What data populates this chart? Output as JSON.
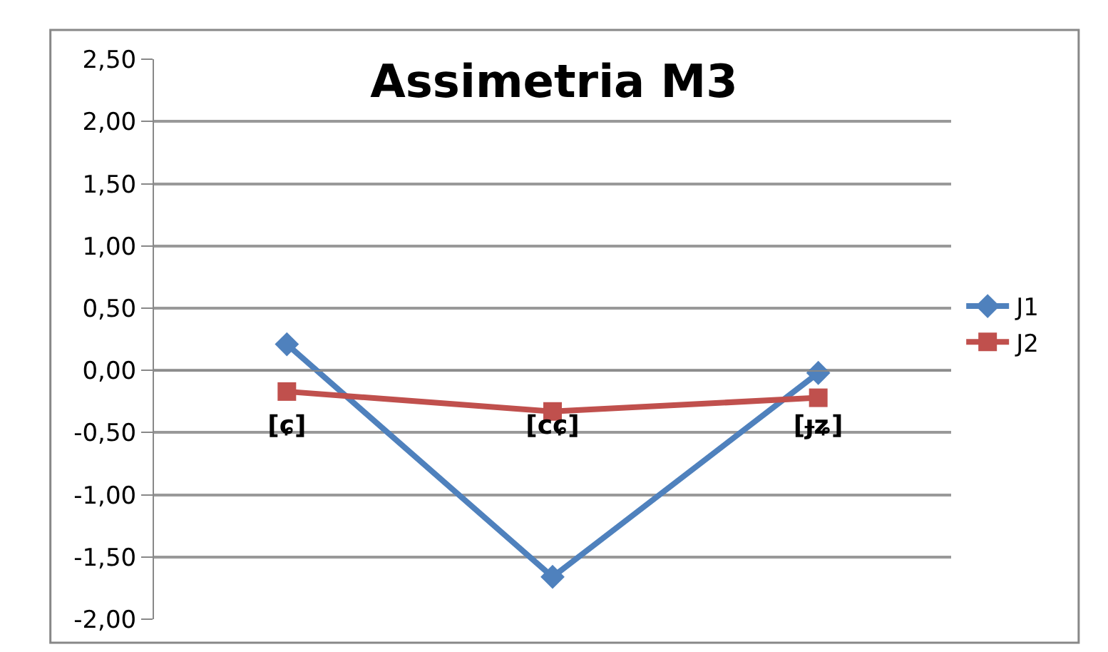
{
  "chart_data": {
    "type": "line",
    "title": "Assimetria M3",
    "categories": [
      "[ɕ]",
      "[cɕ]",
      "[ɟʑ]"
    ],
    "series": [
      {
        "name": "J1",
        "color": "#4f81bd",
        "values": [
          0.21,
          -1.66,
          -0.02
        ],
        "marker": "diamond"
      },
      {
        "name": "J2",
        "color": "#c0504d",
        "values": [
          -0.17,
          -0.33,
          -0.22
        ],
        "marker": "square"
      }
    ],
    "ylim": [
      -2.0,
      2.5
    ],
    "yticks": [
      {
        "value": 2.5,
        "label": "2,50"
      },
      {
        "value": 2.0,
        "label": "2,00"
      },
      {
        "value": 1.5,
        "label": "1,50"
      },
      {
        "value": 1.0,
        "label": "1,00"
      },
      {
        "value": 0.5,
        "label": "0,50"
      },
      {
        "value": 0.0,
        "label": "0,00"
      },
      {
        "value": -0.5,
        "label": "-0,50"
      },
      {
        "value": -1.0,
        "label": "-1,00"
      },
      {
        "value": -1.5,
        "label": "-1,50"
      },
      {
        "value": -2.0,
        "label": "-2,00"
      }
    ],
    "grid": "y",
    "legend": "right",
    "line_style": "solid"
  }
}
